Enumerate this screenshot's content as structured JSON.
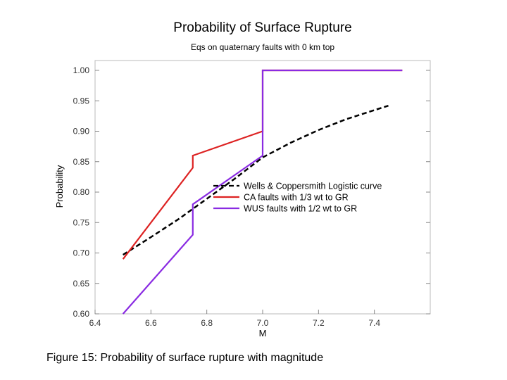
{
  "caption": "Figure 15: Probability of surface rupture with magnitude",
  "chart_data": {
    "type": "line",
    "title": "Probability of Surface Rupture",
    "subtitle": "Eqs on quaternary faults with 0 km top",
    "xlabel": "M",
    "ylabel": "Probability",
    "xlim": [
      6.4,
      7.6
    ],
    "ylim": [
      0.6,
      1.0
    ],
    "xticks": [
      6.4,
      6.6,
      6.8,
      7.0,
      7.2,
      7.4
    ],
    "xtick_labels": [
      "6.4",
      "6.6",
      "6.8",
      "7.0",
      "7.2",
      "7.4"
    ],
    "yticks": [
      0.6,
      0.65,
      0.7,
      0.75,
      0.8,
      0.85,
      0.9,
      0.95,
      1.0
    ],
    "ytick_labels": [
      "0.60",
      "0.65",
      "0.70",
      "0.75",
      "0.80",
      "0.85",
      "0.90",
      "0.95",
      "1.00"
    ],
    "legend_position": "right-middle",
    "series": [
      {
        "name": "Wells & Coppersmith Logistic curve",
        "color": "#000000",
        "style": "dashed",
        "x": [
          6.5,
          6.6,
          6.7,
          6.8,
          6.9,
          7.0,
          7.1,
          7.2,
          7.3,
          7.45
        ],
        "y": [
          0.697,
          0.726,
          0.756,
          0.789,
          0.822,
          0.857,
          0.881,
          0.902,
          0.92,
          0.942
        ]
      },
      {
        "name": "CA faults with 1/3 wt to GR",
        "color": "#dd2222",
        "style": "solid",
        "x": [
          6.5,
          6.75,
          6.75,
          7.0,
          7.0,
          7.5
        ],
        "y": [
          0.69,
          0.84,
          0.86,
          0.9,
          1.0,
          1.0
        ]
      },
      {
        "name": "WUS faults with 1/2 wt to GR",
        "color": "#8a2be2",
        "style": "solid",
        "x": [
          6.5,
          6.75,
          6.75,
          7.0,
          7.0,
          7.5
        ],
        "y": [
          0.6,
          0.73,
          0.78,
          0.86,
          1.0,
          1.0
        ]
      }
    ]
  }
}
